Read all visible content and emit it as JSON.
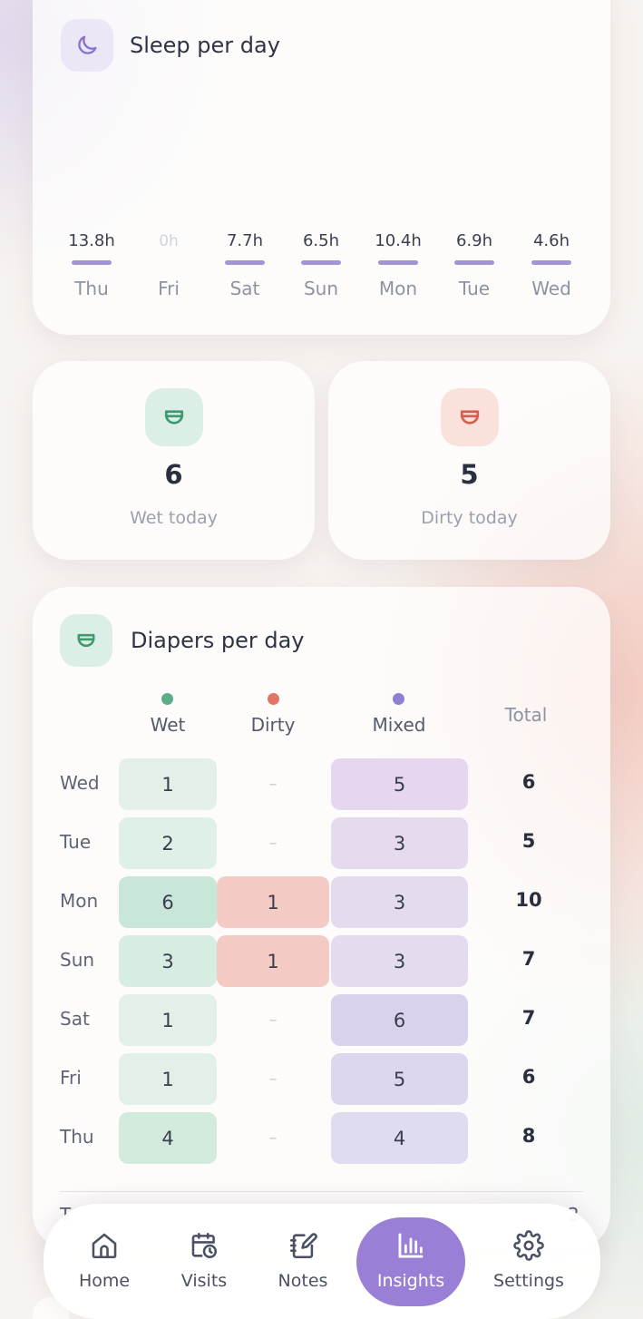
{
  "colors": {
    "sleep_accent": "#a593d9",
    "wet": "#5aae8a",
    "dirty": "#e07668",
    "mixed": "#8f7fd3",
    "nav_active": "#9a7fd6"
  },
  "sleep_card": {
    "title": "Sleep per day",
    "icon": "moon-icon",
    "days": [
      {
        "day": "Thu",
        "value": "13.8h"
      },
      {
        "day": "Fri",
        "value": "0h"
      },
      {
        "day": "Sat",
        "value": "7.7h"
      },
      {
        "day": "Sun",
        "value": "6.5h"
      },
      {
        "day": "Mon",
        "value": "10.4h"
      },
      {
        "day": "Tue",
        "value": "6.9h"
      },
      {
        "day": "Wed",
        "value": "4.6h"
      }
    ]
  },
  "stats": {
    "wet": {
      "value": "6",
      "label": "Wet today",
      "icon": "diaper-icon"
    },
    "dirty": {
      "value": "5",
      "label": "Dirty today",
      "icon": "diaper-icon"
    }
  },
  "diapers_card": {
    "title": "Diapers per day",
    "icon": "diaper-icon",
    "columns": {
      "wet": "Wet",
      "dirty": "Dirty",
      "mixed": "Mixed",
      "total": "Total"
    },
    "dash": "–",
    "rows": [
      {
        "day": "Wed",
        "wet": "1",
        "dirty": "–",
        "mixed": "5",
        "total": "6"
      },
      {
        "day": "Tue",
        "wet": "2",
        "dirty": "–",
        "mixed": "3",
        "total": "5"
      },
      {
        "day": "Mon",
        "wet": "6",
        "dirty": "1",
        "mixed": "3",
        "total": "10"
      },
      {
        "day": "Sun",
        "wet": "3",
        "dirty": "1",
        "mixed": "3",
        "total": "7"
      },
      {
        "day": "Sat",
        "wet": "1",
        "dirty": "–",
        "mixed": "6",
        "total": "7"
      },
      {
        "day": "Fri",
        "wet": "1",
        "dirty": "–",
        "mixed": "5",
        "total": "6"
      },
      {
        "day": "Thu",
        "wet": "4",
        "dirty": "–",
        "mixed": "4",
        "total": "8"
      }
    ]
  },
  "nav": {
    "items": [
      {
        "label": "Home",
        "icon": "home-icon"
      },
      {
        "label": "Visits",
        "icon": "calendar-clock-icon"
      },
      {
        "label": "Notes",
        "icon": "notebook-pen-icon"
      },
      {
        "label": "Insights",
        "icon": "bar-chart-icon",
        "active": true
      },
      {
        "label": "Settings",
        "icon": "gear-icon"
      }
    ]
  }
}
